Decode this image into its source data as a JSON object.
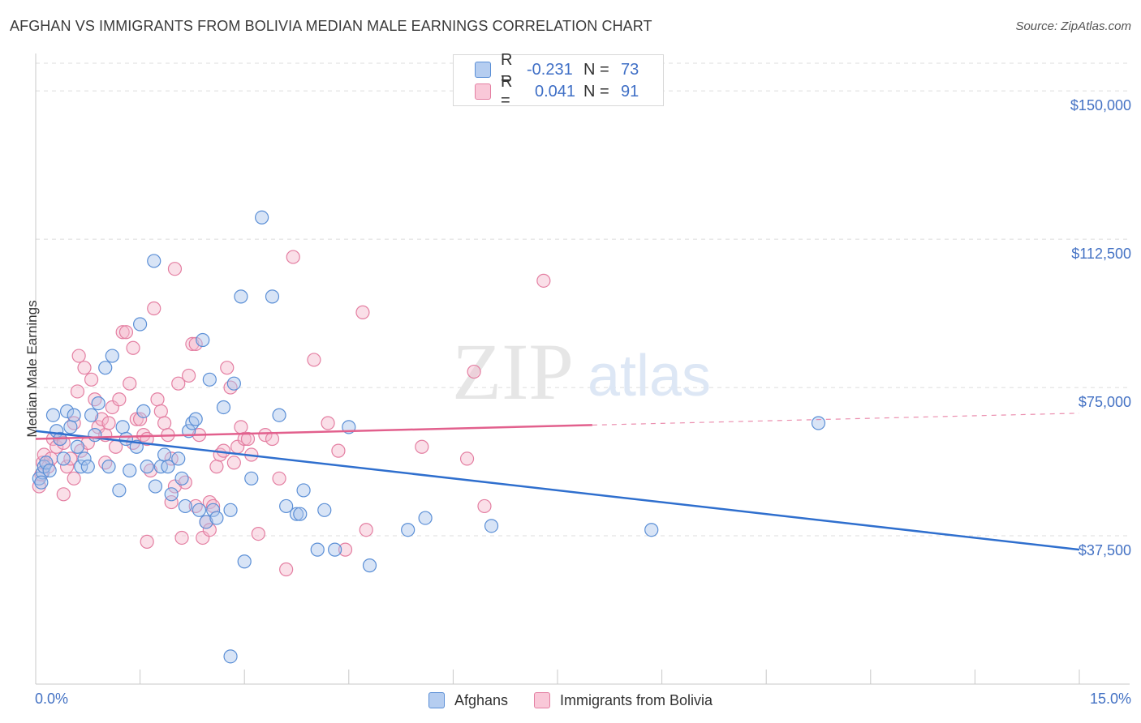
{
  "title": "AFGHAN VS IMMIGRANTS FROM BOLIVIA MEDIAN MALE EARNINGS CORRELATION CHART",
  "source": "Source: ZipAtlas.com",
  "watermark": {
    "zip": "ZIP",
    "atlas": "atlas"
  },
  "legend_top": {
    "rows": [
      {
        "r_label": "R =",
        "r_value": "-0.231",
        "n_label": "N =",
        "n_value": "73"
      },
      {
        "r_label": "R =",
        "r_value": "0.041",
        "n_label": "N =",
        "n_value": "91"
      }
    ]
  },
  "colors": {
    "blue_fill": "#a9c4ec",
    "blue_stroke": "#5b8fd6",
    "blue_line": "#2f6fce",
    "pink_fill": "#f4b7cb",
    "pink_stroke": "#e47fa2",
    "pink_line": "#e2608d",
    "grid": "#dcdcdc",
    "axis_text": "#4472c4"
  },
  "chart_data": {
    "type": "scatter",
    "title": "AFGHAN VS IMMIGRANTS FROM BOLIVIA MEDIAN MALE EARNINGS CORRELATION CHART",
    "ylabel": "Median Male Earnings",
    "xlabel": "",
    "xlim": [
      0,
      15
    ],
    "ylim": [
      0,
      157000
    ],
    "x_tick_labels": {
      "left": "0.0%",
      "right": "15.0%"
    },
    "y_ticks": [
      {
        "value": 37500,
        "label": "$37,500"
      },
      {
        "value": 75000,
        "label": "$75,000"
      },
      {
        "value": 112500,
        "label": "$112,500"
      },
      {
        "value": 150000,
        "label": "$150,000"
      }
    ],
    "legend": [
      {
        "name": "Afghans"
      },
      {
        "name": "Immigrants from Bolivia"
      }
    ],
    "series": [
      {
        "name": "Afghans",
        "R": -0.231,
        "N": 73,
        "trend": {
          "x": [
            0,
            15
          ],
          "y": [
            64000,
            34000
          ]
        },
        "points": [
          [
            0.05,
            52000
          ],
          [
            0.1,
            53500
          ],
          [
            0.12,
            55000
          ],
          [
            0.15,
            56000
          ],
          [
            0.2,
            54000
          ],
          [
            0.25,
            68000
          ],
          [
            0.3,
            64000
          ],
          [
            0.35,
            62000
          ],
          [
            0.4,
            57000
          ],
          [
            0.45,
            69000
          ],
          [
            0.5,
            65000
          ],
          [
            0.55,
            68000
          ],
          [
            0.6,
            60000
          ],
          [
            0.65,
            55000
          ],
          [
            0.7,
            57000
          ],
          [
            0.75,
            55000
          ],
          [
            0.8,
            68000
          ],
          [
            0.85,
            63000
          ],
          [
            0.9,
            71000
          ],
          [
            1.0,
            80000
          ],
          [
            1.05,
            55000
          ],
          [
            1.1,
            83000
          ],
          [
            1.2,
            49000
          ],
          [
            1.25,
            65000
          ],
          [
            1.3,
            62000
          ],
          [
            1.35,
            54000
          ],
          [
            1.45,
            60000
          ],
          [
            1.5,
            91000
          ],
          [
            1.55,
            69000
          ],
          [
            1.6,
            55000
          ],
          [
            1.7,
            107000
          ],
          [
            1.72,
            50000
          ],
          [
            1.8,
            55000
          ],
          [
            1.85,
            58000
          ],
          [
            1.9,
            55000
          ],
          [
            1.95,
            48000
          ],
          [
            2.05,
            57000
          ],
          [
            2.1,
            52000
          ],
          [
            2.15,
            45000
          ],
          [
            2.2,
            64000
          ],
          [
            2.25,
            66000
          ],
          [
            2.3,
            67000
          ],
          [
            2.35,
            44000
          ],
          [
            2.4,
            87000
          ],
          [
            2.45,
            41000
          ],
          [
            2.5,
            77000
          ],
          [
            2.55,
            44000
          ],
          [
            2.6,
            42000
          ],
          [
            2.7,
            70000
          ],
          [
            2.8,
            44000
          ],
          [
            2.85,
            76000
          ],
          [
            2.95,
            98000
          ],
          [
            3.0,
            31000
          ],
          [
            3.1,
            52000
          ],
          [
            3.25,
            118000
          ],
          [
            3.4,
            98000
          ],
          [
            3.5,
            68000
          ],
          [
            3.6,
            45000
          ],
          [
            3.75,
            43000
          ],
          [
            3.8,
            43000
          ],
          [
            3.85,
            49000
          ],
          [
            4.05,
            34000
          ],
          [
            4.15,
            44000
          ],
          [
            4.3,
            34000
          ],
          [
            4.5,
            65000
          ],
          [
            4.8,
            30000
          ],
          [
            5.35,
            39000
          ],
          [
            5.6,
            42000
          ],
          [
            6.55,
            40000
          ],
          [
            8.85,
            39000
          ],
          [
            11.25,
            66000
          ],
          [
            2.8,
            7000
          ],
          [
            0.08,
            51000
          ]
        ]
      },
      {
        "name": "Immigrants from Bolivia",
        "R": 0.041,
        "N": 91,
        "trend": {
          "x": [
            0,
            8
          ],
          "y": [
            62000,
            65500
          ]
        },
        "trend_dashed": {
          "x": [
            8,
            15
          ],
          "y": [
            65500,
            68500
          ]
        },
        "points": [
          [
            0.05,
            50000
          ],
          [
            0.08,
            53000
          ],
          [
            0.1,
            56000
          ],
          [
            0.12,
            58000
          ],
          [
            0.18,
            55000
          ],
          [
            0.22,
            57000
          ],
          [
            0.25,
            62000
          ],
          [
            0.3,
            60000
          ],
          [
            0.35,
            62000
          ],
          [
            0.4,
            48000
          ],
          [
            0.45,
            55000
          ],
          [
            0.5,
            57000
          ],
          [
            0.55,
            52000
          ],
          [
            0.6,
            74000
          ],
          [
            0.62,
            83000
          ],
          [
            0.65,
            59000
          ],
          [
            0.7,
            80000
          ],
          [
            0.75,
            61000
          ],
          [
            0.8,
            77000
          ],
          [
            0.85,
            72000
          ],
          [
            0.9,
            65000
          ],
          [
            0.95,
            67000
          ],
          [
            1.0,
            63000
          ],
          [
            1.05,
            66000
          ],
          [
            1.1,
            70000
          ],
          [
            1.15,
            60000
          ],
          [
            1.2,
            72000
          ],
          [
            1.25,
            89000
          ],
          [
            1.3,
            89000
          ],
          [
            1.35,
            76000
          ],
          [
            1.4,
            85000
          ],
          [
            1.45,
            67000
          ],
          [
            1.5,
            67000
          ],
          [
            1.55,
            63000
          ],
          [
            1.6,
            62000
          ],
          [
            1.65,
            54000
          ],
          [
            1.7,
            95000
          ],
          [
            1.75,
            72000
          ],
          [
            1.8,
            69000
          ],
          [
            1.85,
            66000
          ],
          [
            1.9,
            63000
          ],
          [
            1.95,
            46000
          ],
          [
            2.0,
            50000
          ],
          [
            2.05,
            76000
          ],
          [
            2.1,
            37000
          ],
          [
            2.15,
            51000
          ],
          [
            2.2,
            78000
          ],
          [
            2.25,
            86000
          ],
          [
            2.3,
            86000
          ],
          [
            2.35,
            63000
          ],
          [
            2.4,
            37000
          ],
          [
            2.45,
            41000
          ],
          [
            2.5,
            46000
          ],
          [
            2.55,
            45000
          ],
          [
            2.6,
            55000
          ],
          [
            2.65,
            58000
          ],
          [
            2.7,
            59000
          ],
          [
            2.75,
            80000
          ],
          [
            2.8,
            75000
          ],
          [
            2.85,
            56000
          ],
          [
            2.9,
            60000
          ],
          [
            2.95,
            65000
          ],
          [
            3.0,
            62000
          ],
          [
            3.05,
            62000
          ],
          [
            3.1,
            58000
          ],
          [
            3.2,
            38000
          ],
          [
            3.3,
            63000
          ],
          [
            3.4,
            62000
          ],
          [
            3.5,
            52000
          ],
          [
            3.6,
            29000
          ],
          [
            3.7,
            108000
          ],
          [
            4.0,
            82000
          ],
          [
            4.2,
            66000
          ],
          [
            4.35,
            59000
          ],
          [
            4.45,
            34000
          ],
          [
            4.7,
            94000
          ],
          [
            4.75,
            39000
          ],
          [
            5.55,
            60000
          ],
          [
            6.2,
            57000
          ],
          [
            6.3,
            79000
          ],
          [
            6.45,
            45000
          ],
          [
            7.3,
            102000
          ],
          [
            1.6,
            36000
          ],
          [
            2.0,
            105000
          ],
          [
            1.95,
            57000
          ],
          [
            2.3,
            45000
          ],
          [
            2.5,
            39000
          ],
          [
            1.4,
            61000
          ],
          [
            0.55,
            66000
          ],
          [
            1.0,
            56000
          ],
          [
            0.4,
            61000
          ]
        ]
      }
    ]
  }
}
